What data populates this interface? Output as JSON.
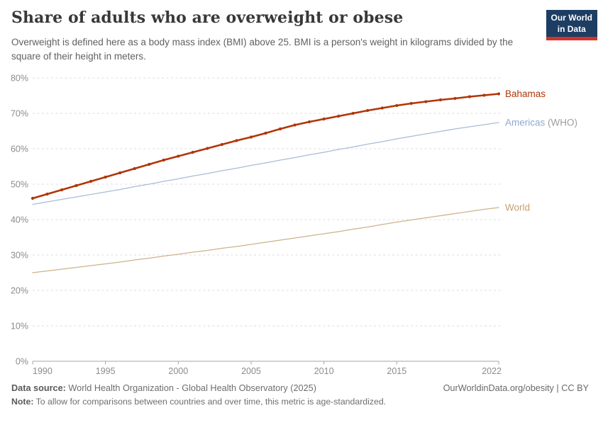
{
  "header": {
    "title": "Share of adults who are overweight or obese",
    "subtitle": "Overweight is defined here as a body mass index (BMI) above 25. BMI is a person's weight in kilograms divided by the square of their height in meters.",
    "logo": {
      "line1": "Our World",
      "line2": "in Data",
      "bg": "#1d3d63",
      "stripe": "#d1342b"
    }
  },
  "chart_data": {
    "type": "line",
    "title": "Share of adults who are overweight or obese",
    "xlabel": "",
    "ylabel": "",
    "ylim": [
      0,
      80
    ],
    "yticks": [
      0,
      10,
      20,
      30,
      40,
      50,
      60,
      70,
      80
    ],
    "ytick_suffix": "%",
    "xticks": [
      1990,
      1995,
      2000,
      2005,
      2010,
      2015,
      2022
    ],
    "grid": "horizontal-dashed",
    "legend_position": "right-end-labels",
    "x": [
      1990,
      1991,
      1992,
      1993,
      1994,
      1995,
      1996,
      1997,
      1998,
      1999,
      2000,
      2001,
      2002,
      2003,
      2004,
      2005,
      2006,
      2007,
      2008,
      2009,
      2010,
      2011,
      2012,
      2013,
      2014,
      2015,
      2016,
      2017,
      2018,
      2019,
      2020,
      2021,
      2022
    ],
    "series": [
      {
        "name": "Bahamas",
        "label": "Bahamas",
        "label_suffix": "",
        "color": "#b13507",
        "label_color": "#b13507",
        "markers": true,
        "line_width": 2.5,
        "values": [
          46.0,
          47.2,
          48.4,
          49.6,
          50.8,
          52.0,
          53.2,
          54.4,
          55.6,
          56.8,
          57.9,
          59.0,
          60.1,
          61.2,
          62.3,
          63.3,
          64.4,
          65.6,
          66.7,
          67.6,
          68.4,
          69.2,
          70.0,
          70.8,
          71.5,
          72.2,
          72.8,
          73.3,
          73.8,
          74.2,
          74.7,
          75.1,
          75.5
        ]
      },
      {
        "name": "Americas (WHO)",
        "label": "Americas",
        "label_suffix": " (WHO)",
        "color": "#a8bcda",
        "label_color": "#90a9d1",
        "markers": false,
        "line_width": 1.3,
        "values": [
          44.3,
          45.0,
          45.7,
          46.4,
          47.1,
          47.8,
          48.5,
          49.3,
          50.0,
          50.8,
          51.5,
          52.3,
          53.0,
          53.8,
          54.5,
          55.3,
          56.0,
          56.8,
          57.5,
          58.3,
          59.0,
          59.8,
          60.5,
          61.3,
          62.0,
          62.8,
          63.5,
          64.2,
          64.9,
          65.6,
          66.2,
          66.8,
          67.4
        ]
      },
      {
        "name": "World",
        "label": "World",
        "label_suffix": "",
        "color": "#cfb18a",
        "label_color": "#c4a173",
        "markers": false,
        "line_width": 1.3,
        "values": [
          25.0,
          25.5,
          26.0,
          26.5,
          27.0,
          27.5,
          28.0,
          28.6,
          29.1,
          29.7,
          30.2,
          30.8,
          31.3,
          31.9,
          32.4,
          33.0,
          33.6,
          34.2,
          34.8,
          35.4,
          36.0,
          36.6,
          37.3,
          37.9,
          38.6,
          39.3,
          39.9,
          40.5,
          41.1,
          41.7,
          42.3,
          42.9,
          43.4
        ]
      }
    ],
    "suffix_color": "#9e9e9e",
    "axis_color": "#a5a5a5",
    "grid_color": "#dedede",
    "tick_text_color": "#8c8c8c"
  },
  "footer": {
    "data_source_label": "Data source:",
    "data_source_value": "World Health Organization - Global Health Observatory (2025)",
    "note_label": "Note:",
    "note_value": "To allow for comparisons between countries and over time, this metric is age-standardized.",
    "cc_link": "OurWorldinData.org/obesity | CC BY"
  }
}
